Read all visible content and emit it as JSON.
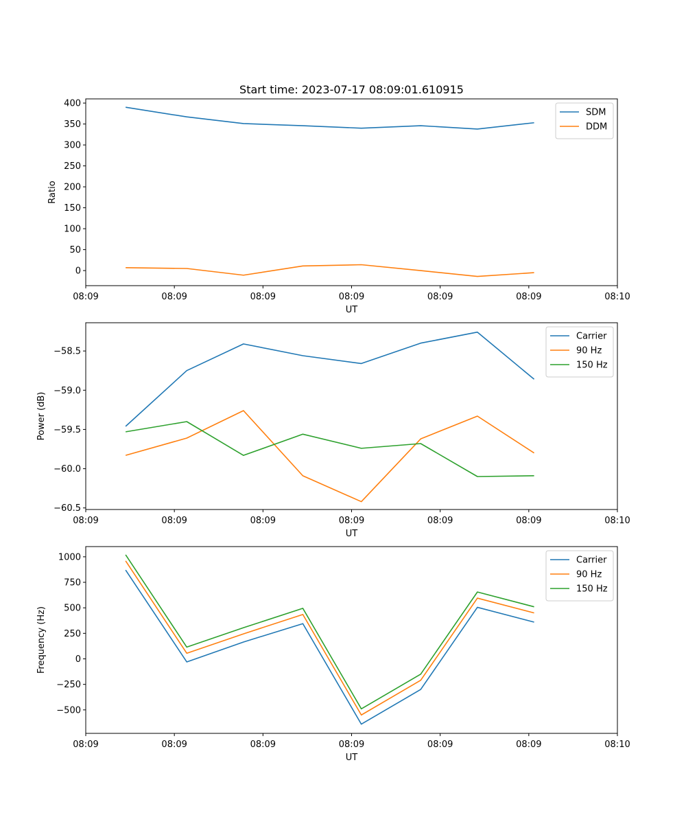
{
  "figure_title": "Start time: 2023-07-17 08:09:01.610915",
  "chart_data": [
    {
      "type": "line",
      "title": "Start time: 2023-07-17 08:09:01.610915",
      "xlabel": "UT",
      "ylabel": "Ratio",
      "x": [
        0.45,
        1.14,
        1.78,
        2.45,
        3.11,
        3.78,
        4.42,
        5.06
      ],
      "xlim": [
        0,
        6
      ],
      "xticks": [
        0,
        1,
        2,
        3,
        4,
        5,
        6
      ],
      "xtick_labels": [
        "08:09",
        "08:09",
        "08:09",
        "08:09",
        "08:09",
        "08:09",
        "08:10"
      ],
      "ylim": [
        -36,
        410
      ],
      "yticks": [
        0,
        50,
        100,
        150,
        200,
        250,
        300,
        350,
        400
      ],
      "ytick_labels": [
        "0",
        "50",
        "100",
        "150",
        "200",
        "250",
        "300",
        "350",
        "400"
      ],
      "legend_position": "top-right",
      "series": [
        {
          "name": "SDM",
          "color": "#1f77b4",
          "values": [
            390,
            367,
            351,
            346,
            340,
            346,
            338,
            353
          ]
        },
        {
          "name": "DDM",
          "color": "#ff7f0e",
          "values": [
            7,
            5,
            -11,
            11,
            14,
            0,
            -14,
            -5
          ]
        }
      ]
    },
    {
      "type": "line",
      "title": "",
      "xlabel": "UT",
      "ylabel": "Power (dB)",
      "x": [
        0.45,
        1.14,
        1.78,
        2.45,
        3.11,
        3.78,
        4.42,
        5.06
      ],
      "xlim": [
        0,
        6
      ],
      "xticks": [
        0,
        1,
        2,
        3,
        4,
        5,
        6
      ],
      "xtick_labels": [
        "08:09",
        "08:09",
        "08:09",
        "08:09",
        "08:09",
        "08:09",
        "08:10"
      ],
      "ylim": [
        -60.52,
        -58.14
      ],
      "yticks": [
        -60.5,
        -60.0,
        -59.5,
        -59.0,
        -58.5
      ],
      "ytick_labels": [
        "−60.5",
        "−60.0",
        "−59.5",
        "−59.0",
        "−58.5"
      ],
      "legend_position": "top-right",
      "series": [
        {
          "name": "Carrier",
          "color": "#1f77b4",
          "values": [
            -59.46,
            -58.75,
            -58.41,
            -58.56,
            -58.66,
            -58.4,
            -58.26,
            -58.86
          ]
        },
        {
          "name": "90 Hz",
          "color": "#ff7f0e",
          "values": [
            -59.83,
            -59.61,
            -59.26,
            -60.09,
            -60.42,
            -59.62,
            -59.33,
            -59.8
          ]
        },
        {
          "name": "150 Hz",
          "color": "#2ca02c",
          "values": [
            -59.53,
            -59.4,
            -59.83,
            -59.56,
            -59.74,
            -59.68,
            -60.1,
            -60.09
          ]
        }
      ]
    },
    {
      "type": "line",
      "title": "",
      "xlabel": "UT",
      "ylabel": "Frequency (Hz)",
      "x": [
        0.45,
        1.14,
        1.78,
        2.45,
        3.11,
        3.78,
        4.42,
        5.06
      ],
      "xlim": [
        0,
        6
      ],
      "xticks": [
        0,
        1,
        2,
        3,
        4,
        5,
        6
      ],
      "xtick_labels": [
        "08:09",
        "08:09",
        "08:09",
        "08:09",
        "08:09",
        "08:09",
        "08:10"
      ],
      "ylim": [
        -730,
        1100
      ],
      "yticks": [
        -500,
        -250,
        0,
        250,
        500,
        750,
        1000
      ],
      "ytick_labels": [
        "−500",
        "−250",
        "0",
        "250",
        "500",
        "750",
        "1000"
      ],
      "legend_position": "top-right",
      "series": [
        {
          "name": "Carrier",
          "color": "#1f77b4",
          "values": [
            870,
            -30,
            165,
            345,
            -640,
            -300,
            505,
            360
          ]
        },
        {
          "name": "90 Hz",
          "color": "#ff7f0e",
          "values": [
            960,
            55,
            245,
            435,
            -550,
            -210,
            595,
            450
          ]
        },
        {
          "name": "150 Hz",
          "color": "#2ca02c",
          "values": [
            1020,
            115,
            305,
            495,
            -490,
            -150,
            655,
            510
          ]
        }
      ]
    }
  ]
}
